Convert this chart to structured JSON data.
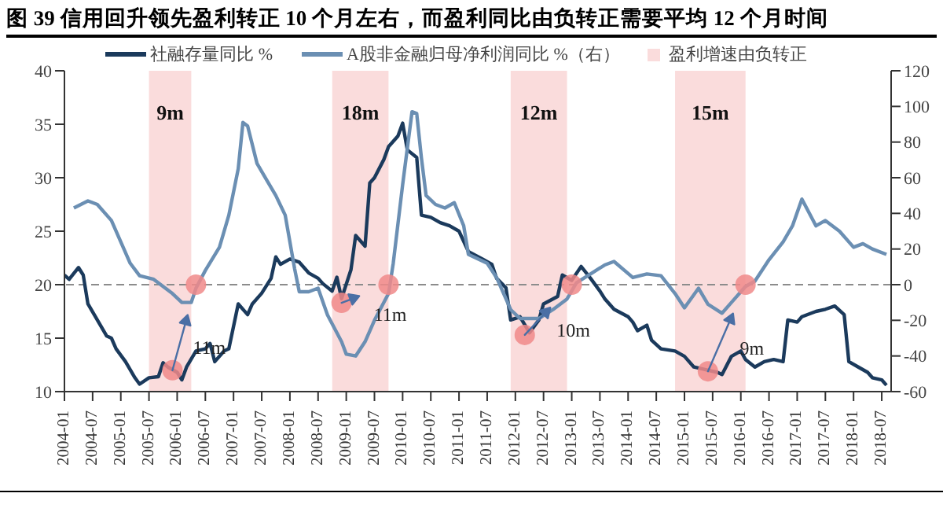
{
  "chart_data": {
    "type": "line",
    "title": "图 39 信用回升领先盈利转正 10 个月左右，而盈利同比由负转正需要平均 12 个月时间",
    "xlim": [
      "2004-01",
      "2018-09"
    ],
    "xticks": [
      "2004-01",
      "2004-07",
      "2005-01",
      "2005-07",
      "2006-01",
      "2006-07",
      "2007-01",
      "2007-07",
      "2008-01",
      "2008-07",
      "2009-01",
      "2009-07",
      "2010-01",
      "2010-07",
      "2011-01",
      "2011-07",
      "2012-01",
      "2012-07",
      "2013-01",
      "2013-07",
      "2014-01",
      "2014-07",
      "2015-01",
      "2015-07",
      "2016-01",
      "2016-07",
      "2017-01",
      "2017-07",
      "2018-01",
      "2018-07"
    ],
    "ylim": [
      10,
      40
    ],
    "yticks": [
      10,
      15,
      20,
      25,
      30,
      35,
      40
    ],
    "y2lim": [
      -60,
      120
    ],
    "y2ticks": [
      -60,
      -40,
      -20,
      0,
      20,
      40,
      60,
      80,
      100,
      120
    ],
    "legend": "top",
    "series": [
      {
        "name": "社融存量同比 %",
        "color": "#1b3a5c",
        "x": [
          "2004-01",
          "2004-02",
          "2004-04",
          "2004-05",
          "2004-06",
          "2004-08",
          "2004-10",
          "2004-11",
          "2004-12",
          "2005-02",
          "2005-04",
          "2005-05",
          "2005-07",
          "2005-09",
          "2005-10",
          "2005-11",
          "2006-01",
          "2006-02",
          "2006-03",
          "2006-05",
          "2006-07",
          "2006-08",
          "2006-09",
          "2006-11",
          "2006-12",
          "2007-02",
          "2007-04",
          "2007-05",
          "2007-07",
          "2007-09",
          "2007-10",
          "2007-11",
          "2008-01",
          "2008-03",
          "2008-05",
          "2008-07",
          "2008-08",
          "2008-10",
          "2008-11",
          "2008-12",
          "2009-02",
          "2009-03",
          "2009-05",
          "2009-06",
          "2009-07",
          "2009-09",
          "2009-10",
          "2009-11",
          "2009-12",
          "2010-01",
          "2010-02",
          "2010-04",
          "2010-05",
          "2010-07",
          "2010-09",
          "2010-11",
          "2011-01",
          "2011-03",
          "2011-06",
          "2011-08",
          "2011-09",
          "2011-11",
          "2011-12",
          "2012-02",
          "2012-04",
          "2012-06",
          "2012-07",
          "2012-10",
          "2012-11",
          "2013-01",
          "2013-03",
          "2013-05",
          "2013-07",
          "2013-08",
          "2013-10",
          "2014-01",
          "2014-02",
          "2014-03",
          "2014-05",
          "2014-06",
          "2014-08",
          "2014-11",
          "2015-01",
          "2015-03",
          "2015-05",
          "2015-08",
          "2015-09",
          "2015-11",
          "2016-01",
          "2016-02",
          "2016-04",
          "2016-06",
          "2016-08",
          "2016-10",
          "2016-11",
          "2017-01",
          "2017-02",
          "2017-05",
          "2017-07",
          "2017-09",
          "2017-11",
          "2017-12",
          "2018-02",
          "2018-04",
          "2018-05",
          "2018-07",
          "2018-08"
        ],
        "values": [
          20.9,
          20.5,
          21.6,
          20.9,
          18.2,
          16.7,
          15.2,
          15.0,
          14.0,
          12.8,
          11.3,
          10.7,
          11.3,
          11.4,
          12.7,
          12.3,
          11.8,
          11.1,
          12.3,
          13.8,
          14.0,
          14.5,
          12.8,
          13.8,
          14.0,
          18.2,
          17.2,
          18.2,
          19.2,
          20.6,
          22.6,
          21.9,
          22.4,
          22.1,
          21.1,
          20.6,
          20.1,
          19.4,
          20.7,
          18.7,
          21.4,
          24.6,
          23.6,
          29.5,
          30.0,
          31.7,
          32.9,
          33.4,
          33.9,
          35.1,
          32.6,
          31.9,
          26.5,
          26.3,
          25.8,
          25.5,
          25.0,
          23.1,
          22.4,
          21.9,
          20.6,
          19.7,
          16.7,
          17.0,
          15.5,
          16.7,
          18.2,
          18.9,
          20.9,
          20.4,
          21.7,
          20.6,
          19.4,
          18.7,
          17.7,
          17.0,
          16.5,
          15.7,
          16.2,
          14.8,
          14.0,
          13.8,
          13.3,
          12.3,
          12.1,
          11.8,
          11.6,
          13.3,
          13.8,
          13.0,
          12.3,
          12.8,
          13.0,
          12.8,
          16.7,
          16.5,
          17.0,
          17.5,
          17.7,
          18.0,
          17.2,
          12.8,
          12.3,
          11.8,
          11.3,
          11.1,
          10.6
        ]
      },
      {
        "name": "A股非金融归母净利润同比 %（右）",
        "axis": "y2",
        "color": "#6b8fb3",
        "x": [
          "2004-03",
          "2004-06",
          "2004-08",
          "2004-11",
          "2005-01",
          "2005-03",
          "2005-05",
          "2005-08",
          "2005-10",
          "2005-12",
          "2006-02",
          "2006-04",
          "2006-05",
          "2006-07",
          "2006-10",
          "2006-12",
          "2007-02",
          "2007-03",
          "2007-04",
          "2007-06",
          "2007-08",
          "2007-10",
          "2007-12",
          "2008-02",
          "2008-03",
          "2008-05",
          "2008-07",
          "2008-09",
          "2008-12",
          "2009-01",
          "2009-03",
          "2009-05",
          "2009-07",
          "2009-10",
          "2009-11",
          "2010-01",
          "2010-03",
          "2010-04",
          "2010-05",
          "2010-06",
          "2010-08",
          "2010-10",
          "2010-12",
          "2011-02",
          "2011-03",
          "2011-07",
          "2011-09",
          "2011-12",
          "2012-02",
          "2012-06",
          "2012-09",
          "2012-12",
          "2013-02",
          "2013-05",
          "2013-08",
          "2013-10",
          "2014-02",
          "2014-05",
          "2014-08",
          "2014-11",
          "2015-01",
          "2015-04",
          "2015-06",
          "2015-09",
          "2015-11",
          "2016-02",
          "2016-04",
          "2016-07",
          "2016-10",
          "2016-12",
          "2017-02",
          "2017-05",
          "2017-07",
          "2017-10",
          "2018-01",
          "2018-03",
          "2018-05",
          "2018-08"
        ],
        "values": [
          43,
          47,
          45,
          36,
          24,
          12,
          5,
          3,
          -1,
          -5,
          -10,
          -10,
          -2,
          8,
          21,
          39,
          65,
          91,
          89,
          68,
          59,
          50,
          39,
          9,
          -4,
          -4,
          -2,
          -17,
          -32,
          -39,
          -40,
          -32,
          -20,
          -5,
          12,
          56,
          97,
          96,
          71,
          50,
          45,
          43,
          46,
          33,
          17,
          12,
          4,
          -14,
          -19,
          -19,
          -14,
          -8,
          1,
          6,
          11,
          13,
          4,
          6,
          5,
          -5,
          -13,
          -2,
          -11,
          -16,
          -10,
          -1,
          2,
          14,
          24,
          33,
          48,
          33,
          36,
          30,
          21,
          23,
          20,
          17
        ]
      },
      {
        "type": "scatter",
        "marker": "circle",
        "color": "#f08a8a",
        "x": [
          "2005-12",
          "2008-12",
          "2012-03",
          "2015-06"
        ],
        "values": [
          12.0,
          18.3,
          15.3,
          11.9
        ]
      },
      {
        "type": "scatter",
        "marker": "circle",
        "axis": "y2",
        "color": "#f08a8a",
        "x": [
          "2006-05",
          "2009-10",
          "2013-01",
          "2016-02"
        ],
        "values": [
          0,
          0,
          0,
          0
        ]
      }
    ],
    "bands": [
      {
        "axis": "x",
        "from": "2005-07",
        "to": "2006-04",
        "label": "9m",
        "color": "#fadcdc"
      },
      {
        "axis": "x",
        "from": "2008-10",
        "to": "2009-10",
        "label": "18m",
        "color": "#fadcdc"
      },
      {
        "axis": "x",
        "from": "2011-12",
        "to": "2012-12",
        "label": "12m",
        "color": "#fadcdc"
      },
      {
        "axis": "x",
        "from": "2014-11",
        "to": "2016-02",
        "label": "15m",
        "color": "#fadcdc"
      }
    ],
    "ref_lines": [
      {
        "axis": "y2",
        "value": 0,
        "color": "#8c8c8c",
        "line_style": "dashed"
      }
    ],
    "annotations": [
      "盈利增速由负转正",
      "11m",
      "11m",
      "10m",
      "9m"
    ]
  }
}
